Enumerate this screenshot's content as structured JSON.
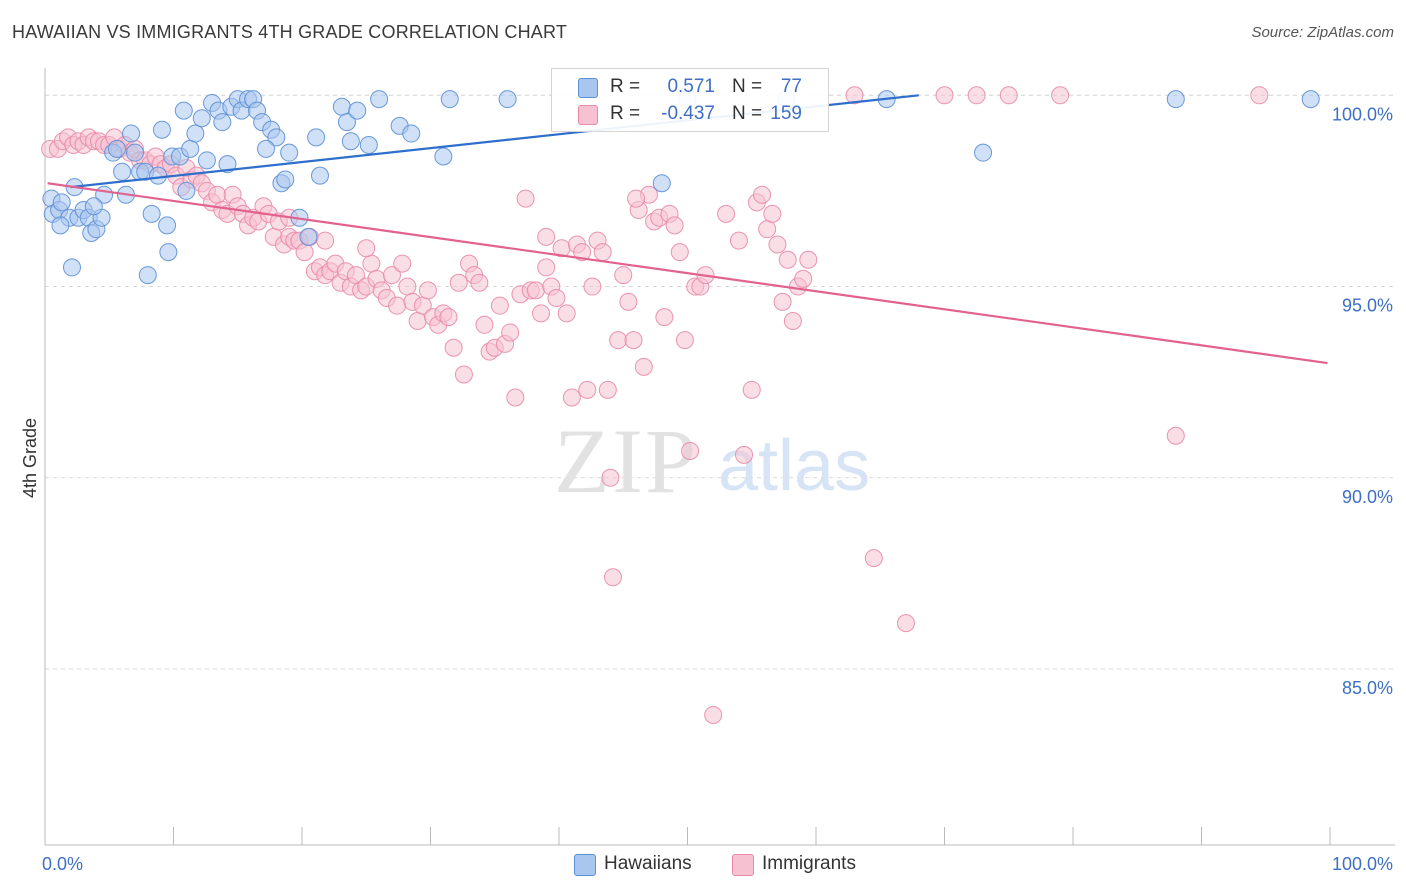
{
  "title": "HAWAIIAN VS IMMIGRANTS 4TH GRADE CORRELATION CHART",
  "source": "Source: ZipAtlas.com",
  "watermark": {
    "zip": "ZIP",
    "atlas": "atlas"
  },
  "legend": {
    "hawaiians": {
      "r_label": "R =",
      "r_value": "0.571",
      "n_label": "N =",
      "n_value": "77"
    },
    "immigrants": {
      "r_label": "R =",
      "r_value": "-0.437",
      "n_label": "N =",
      "n_value": "159"
    }
  },
  "bottom_legend": {
    "hawaiians": "Hawaiians",
    "immigrants": "Immigrants"
  },
  "colors": {
    "blue_fill": "#a9c6ee",
    "blue_stroke": "#5b8fd6",
    "blue_line": "#2f6fcc",
    "pink_fill": "#f6c2d2",
    "pink_stroke": "#e889a8",
    "pink_line": "#e2628f",
    "tick_text": "#3e6fc4",
    "grid": "#d9d9d9"
  },
  "chart_data": {
    "type": "scatter",
    "title": "HAWAIIAN VS IMMIGRANTS 4TH GRADE CORRELATION CHART",
    "xlabel": "",
    "ylabel": "4th Grade",
    "xlim": [
      0,
      100
    ],
    "ylim": [
      80.4,
      100.4
    ],
    "x_tick_labels": [
      "0.0%",
      "100.0%"
    ],
    "y_ticks": [
      85,
      90,
      95,
      100
    ],
    "y_tick_labels": [
      "85.0%",
      "90.0%",
      "95.0%",
      "100.0%"
    ],
    "grid": true,
    "legend_position": "top-center",
    "series": [
      {
        "name": "Hawaiians",
        "trend": {
          "x": [
            2.0,
            68.0
          ],
          "y": [
            97.6,
            100.0
          ]
        },
        "points": [
          [
            0.5,
            97.3
          ],
          [
            0.6,
            96.9
          ],
          [
            1.1,
            97.0
          ],
          [
            1.3,
            97.2
          ],
          [
            1.9,
            96.8
          ],
          [
            2.3,
            97.6
          ],
          [
            2.6,
            96.8
          ],
          [
            3.0,
            97.0
          ],
          [
            3.4,
            96.8
          ],
          [
            3.6,
            96.4
          ],
          [
            4.0,
            96.5
          ],
          [
            4.4,
            96.8
          ],
          [
            4.6,
            97.4
          ],
          [
            5.3,
            98.5
          ],
          [
            5.6,
            98.6
          ],
          [
            6.0,
            98.0
          ],
          [
            6.3,
            97.4
          ],
          [
            7.0,
            98.5
          ],
          [
            7.4,
            98.0
          ],
          [
            7.8,
            98.0
          ],
          [
            8.0,
            95.3
          ],
          [
            8.3,
            96.9
          ],
          [
            8.8,
            97.9
          ],
          [
            9.1,
            99.1
          ],
          [
            9.5,
            96.6
          ],
          [
            9.9,
            98.4
          ],
          [
            10.5,
            98.4
          ],
          [
            10.8,
            99.6
          ],
          [
            11.0,
            97.5
          ],
          [
            11.3,
            98.6
          ],
          [
            11.7,
            99.0
          ],
          [
            12.2,
            99.4
          ],
          [
            12.6,
            98.3
          ],
          [
            13.0,
            99.8
          ],
          [
            13.5,
            99.6
          ],
          [
            13.8,
            99.3
          ],
          [
            14.2,
            98.2
          ],
          [
            14.5,
            99.7
          ],
          [
            15.0,
            99.9
          ],
          [
            15.3,
            99.6
          ],
          [
            15.8,
            99.9
          ],
          [
            16.2,
            99.9
          ],
          [
            16.5,
            99.6
          ],
          [
            16.9,
            99.3
          ],
          [
            17.6,
            99.1
          ],
          [
            18.0,
            98.9
          ],
          [
            18.4,
            97.7
          ],
          [
            18.7,
            97.8
          ],
          [
            19.0,
            98.5
          ],
          [
            19.8,
            96.8
          ],
          [
            20.5,
            96.3
          ],
          [
            21.1,
            98.9
          ],
          [
            21.4,
            97.9
          ],
          [
            23.1,
            99.7
          ],
          [
            23.5,
            99.3
          ],
          [
            23.8,
            98.8
          ],
          [
            24.3,
            99.6
          ],
          [
            25.2,
            98.7
          ],
          [
            26.0,
            99.9
          ],
          [
            27.6,
            99.2
          ],
          [
            28.5,
            99.0
          ],
          [
            31.0,
            98.4
          ],
          [
            31.5,
            99.9
          ],
          [
            36.0,
            99.9
          ],
          [
            48.0,
            97.7
          ],
          [
            50.0,
            99.9
          ],
          [
            57.7,
            99.9
          ],
          [
            65.5,
            99.9
          ],
          [
            73.0,
            98.5
          ],
          [
            88.0,
            99.9
          ],
          [
            98.5,
            99.9
          ],
          [
            2.1,
            95.5
          ],
          [
            1.2,
            96.6
          ],
          [
            9.6,
            95.9
          ],
          [
            6.7,
            99.0
          ],
          [
            3.8,
            97.1
          ],
          [
            17.2,
            98.6
          ]
        ]
      },
      {
        "name": "Immigrants",
        "trend": {
          "x": [
            0.2,
            99.8
          ],
          "y": [
            97.7,
            93.0
          ]
        },
        "points": [
          [
            0.4,
            98.6
          ],
          [
            1.0,
            98.6
          ],
          [
            1.4,
            98.8
          ],
          [
            1.8,
            98.9
          ],
          [
            2.2,
            98.7
          ],
          [
            2.6,
            98.8
          ],
          [
            3.0,
            98.7
          ],
          [
            3.4,
            98.9
          ],
          [
            3.8,
            98.8
          ],
          [
            4.2,
            98.8
          ],
          [
            4.6,
            98.7
          ],
          [
            5.0,
            98.7
          ],
          [
            5.4,
            98.9
          ],
          [
            5.8,
            98.6
          ],
          [
            6.2,
            98.7
          ],
          [
            6.6,
            98.5
          ],
          [
            7.0,
            98.6
          ],
          [
            7.4,
            98.3
          ],
          [
            7.8,
            98.3
          ],
          [
            8.2,
            98.2
          ],
          [
            8.6,
            98.4
          ],
          [
            9.0,
            98.2
          ],
          [
            9.4,
            98.1
          ],
          [
            9.8,
            98.2
          ],
          [
            10.2,
            97.9
          ],
          [
            10.6,
            97.6
          ],
          [
            11.0,
            98.1
          ],
          [
            11.4,
            97.8
          ],
          [
            11.8,
            97.9
          ],
          [
            12.2,
            97.7
          ],
          [
            12.6,
            97.5
          ],
          [
            13.0,
            97.2
          ],
          [
            13.4,
            97.4
          ],
          [
            13.8,
            97.0
          ],
          [
            14.2,
            96.9
          ],
          [
            14.6,
            97.4
          ],
          [
            15.0,
            97.1
          ],
          [
            15.4,
            96.9
          ],
          [
            15.8,
            96.6
          ],
          [
            16.2,
            96.8
          ],
          [
            16.6,
            96.7
          ],
          [
            17.0,
            97.1
          ],
          [
            17.4,
            96.9
          ],
          [
            17.8,
            96.3
          ],
          [
            18.2,
            96.7
          ],
          [
            18.6,
            96.1
          ],
          [
            19.0,
            96.3
          ],
          [
            19.4,
            96.2
          ],
          [
            19.8,
            96.2
          ],
          [
            20.2,
            95.9
          ],
          [
            20.6,
            96.3
          ],
          [
            21.0,
            95.4
          ],
          [
            21.4,
            95.5
          ],
          [
            21.8,
            95.3
          ],
          [
            22.2,
            95.4
          ],
          [
            22.6,
            95.6
          ],
          [
            23.0,
            95.1
          ],
          [
            23.4,
            95.4
          ],
          [
            23.8,
            95.0
          ],
          [
            24.2,
            95.3
          ],
          [
            24.6,
            94.9
          ],
          [
            25.0,
            95.0
          ],
          [
            25.4,
            95.6
          ],
          [
            25.8,
            95.2
          ],
          [
            26.2,
            94.9
          ],
          [
            26.6,
            94.7
          ],
          [
            27.0,
            95.3
          ],
          [
            27.4,
            94.5
          ],
          [
            27.8,
            95.6
          ],
          [
            28.2,
            95.0
          ],
          [
            28.6,
            94.6
          ],
          [
            29.0,
            94.1
          ],
          [
            29.4,
            94.5
          ],
          [
            29.8,
            94.9
          ],
          [
            30.2,
            94.2
          ],
          [
            30.6,
            94.0
          ],
          [
            31.0,
            94.3
          ],
          [
            31.4,
            94.2
          ],
          [
            31.8,
            93.4
          ],
          [
            32.2,
            95.1
          ],
          [
            32.6,
            92.7
          ],
          [
            33.0,
            95.6
          ],
          [
            33.4,
            95.3
          ],
          [
            33.8,
            95.1
          ],
          [
            34.2,
            94.0
          ],
          [
            34.6,
            93.3
          ],
          [
            35.0,
            93.4
          ],
          [
            35.4,
            94.5
          ],
          [
            35.8,
            93.5
          ],
          [
            36.2,
            93.8
          ],
          [
            36.6,
            92.1
          ],
          [
            37.0,
            94.8
          ],
          [
            37.4,
            97.3
          ],
          [
            37.8,
            94.9
          ],
          [
            38.2,
            94.9
          ],
          [
            38.6,
            94.3
          ],
          [
            39.0,
            95.5
          ],
          [
            39.4,
            95.0
          ],
          [
            39.8,
            94.7
          ],
          [
            40.2,
            96.0
          ],
          [
            40.6,
            94.3
          ],
          [
            41.0,
            92.1
          ],
          [
            41.4,
            96.1
          ],
          [
            41.8,
            95.9
          ],
          [
            42.2,
            92.3
          ],
          [
            42.6,
            95.0
          ],
          [
            43.0,
            96.2
          ],
          [
            43.4,
            95.9
          ],
          [
            43.8,
            92.3
          ],
          [
            44.2,
            87.4
          ],
          [
            44.6,
            93.6
          ],
          [
            45.0,
            95.3
          ],
          [
            45.4,
            94.6
          ],
          [
            45.8,
            93.6
          ],
          [
            46.2,
            97.0
          ],
          [
            46.6,
            92.9
          ],
          [
            47.0,
            97.4
          ],
          [
            47.4,
            96.7
          ],
          [
            47.8,
            96.8
          ],
          [
            48.2,
            94.2
          ],
          [
            48.6,
            96.9
          ],
          [
            49.0,
            96.6
          ],
          [
            49.4,
            95.9
          ],
          [
            49.8,
            93.6
          ],
          [
            50.2,
            90.7
          ],
          [
            50.6,
            95.0
          ],
          [
            51.0,
            95.0
          ],
          [
            51.4,
            95.3
          ],
          [
            52.0,
            83.8
          ],
          [
            54.0,
            96.2
          ],
          [
            54.4,
            90.6
          ],
          [
            55.0,
            92.3
          ],
          [
            55.4,
            97.2
          ],
          [
            55.8,
            97.4
          ],
          [
            56.2,
            96.5
          ],
          [
            56.6,
            96.9
          ],
          [
            57.0,
            96.1
          ],
          [
            57.4,
            94.6
          ],
          [
            57.8,
            95.7
          ],
          [
            58.2,
            94.1
          ],
          [
            58.6,
            95.0
          ],
          [
            59.0,
            95.2
          ],
          [
            59.4,
            95.7
          ],
          [
            63.0,
            100.0
          ],
          [
            64.5,
            87.9
          ],
          [
            67.0,
            86.2
          ],
          [
            70.0,
            100.0
          ],
          [
            72.5,
            100.0
          ],
          [
            79.0,
            100.0
          ],
          [
            88.0,
            91.1
          ],
          [
            94.5,
            100.0
          ],
          [
            75.0,
            100.0
          ],
          [
            44.0,
            90.0
          ],
          [
            39.0,
            96.3
          ],
          [
            21.8,
            96.2
          ],
          [
            19.0,
            96.8
          ],
          [
            53.0,
            96.9
          ],
          [
            25.0,
            96.0
          ],
          [
            46.0,
            97.3
          ]
        ]
      }
    ]
  }
}
